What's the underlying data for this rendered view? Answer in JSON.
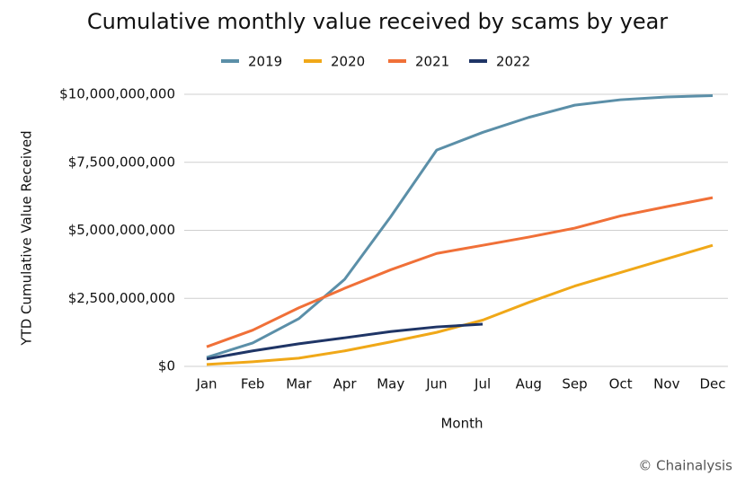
{
  "chart_data": {
    "type": "line",
    "title": "Cumulative monthly value received by scams by year",
    "x_label": "Month",
    "y_label": "YTD Cumulative Value Received",
    "source": "© Chainalysis",
    "categories": [
      "Jan",
      "Feb",
      "Mar",
      "Apr",
      "May",
      "Jun",
      "Jul",
      "Aug",
      "Sep",
      "Oct",
      "Nov",
      "Dec"
    ],
    "series": [
      {
        "name": "2019",
        "color": "#5b8fa8",
        "values": [
          330000000,
          860000000,
          1750000000,
          3200000000,
          5500000000,
          7950000000,
          8600000000,
          9150000000,
          9600000000,
          9800000000,
          9900000000,
          9950000000
        ]
      },
      {
        "name": "2020",
        "color": "#f0a818",
        "values": [
          70000000,
          170000000,
          300000000,
          570000000,
          900000000,
          1250000000,
          1700000000,
          2350000000,
          2950000000,
          3450000000,
          3950000000,
          4450000000
        ]
      },
      {
        "name": "2021",
        "color": "#f07038",
        "values": [
          720000000,
          1330000000,
          2150000000,
          2870000000,
          3550000000,
          4150000000,
          4450000000,
          4750000000,
          5080000000,
          5530000000,
          5870000000,
          6200000000
        ]
      },
      {
        "name": "2022",
        "color": "#1f3566",
        "values": [
          270000000,
          570000000,
          830000000,
          1050000000,
          1280000000,
          1450000000,
          1550000000,
          null,
          null,
          null,
          null,
          null
        ]
      }
    ],
    "ylim": [
      0,
      10000000000
    ],
    "yticks": [
      {
        "value": 0,
        "label": "$0"
      },
      {
        "value": 2500000000,
        "label": "$2,500,000,000"
      },
      {
        "value": 5000000000,
        "label": "$5,000,000,000"
      },
      {
        "value": 7500000000,
        "label": "$7,500,000,000"
      },
      {
        "value": 10000000000,
        "label": "$10,000,000,000"
      }
    ],
    "grid": true,
    "legend": "top"
  }
}
